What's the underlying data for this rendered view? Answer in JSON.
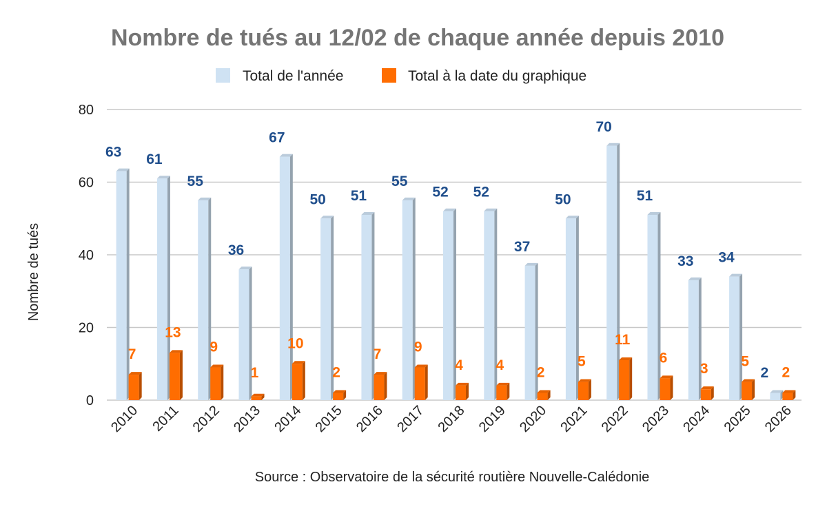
{
  "chart_data": {
    "type": "bar",
    "title": "Nombre de tués au 12/02 de chaque année depuis 2010",
    "xlabel": "",
    "ylabel": "Nombre de tués",
    "ylim": [
      0,
      80
    ],
    "yticks": [
      "0",
      "20",
      "40",
      "60",
      "80"
    ],
    "grid": true,
    "legend_position": "top",
    "categories": [
      "2010",
      "2011",
      "2012",
      "2013",
      "2014",
      "2015",
      "2016",
      "2017",
      "2018",
      "2019",
      "2020",
      "2021",
      "2022",
      "2023",
      "2024",
      "2025",
      "2026"
    ],
    "series": [
      {
        "name": "Total de l'année",
        "color": "#cfe2f3",
        "label_color": "#1f4e8c",
        "values": [
          63,
          61,
          55,
          36,
          67,
          50,
          51,
          55,
          52,
          52,
          37,
          50,
          70,
          51,
          33,
          34,
          2
        ]
      },
      {
        "name": "Total à la date du graphique",
        "color": "#ff6d01",
        "label_color": "#ff6d01",
        "values": [
          7,
          13,
          9,
          1,
          10,
          2,
          7,
          9,
          4,
          4,
          2,
          5,
          11,
          6,
          3,
          5,
          2
        ]
      }
    ],
    "annotation": "Source : Observatoire de la sécurité routière Nouvelle-Calédonie"
  }
}
